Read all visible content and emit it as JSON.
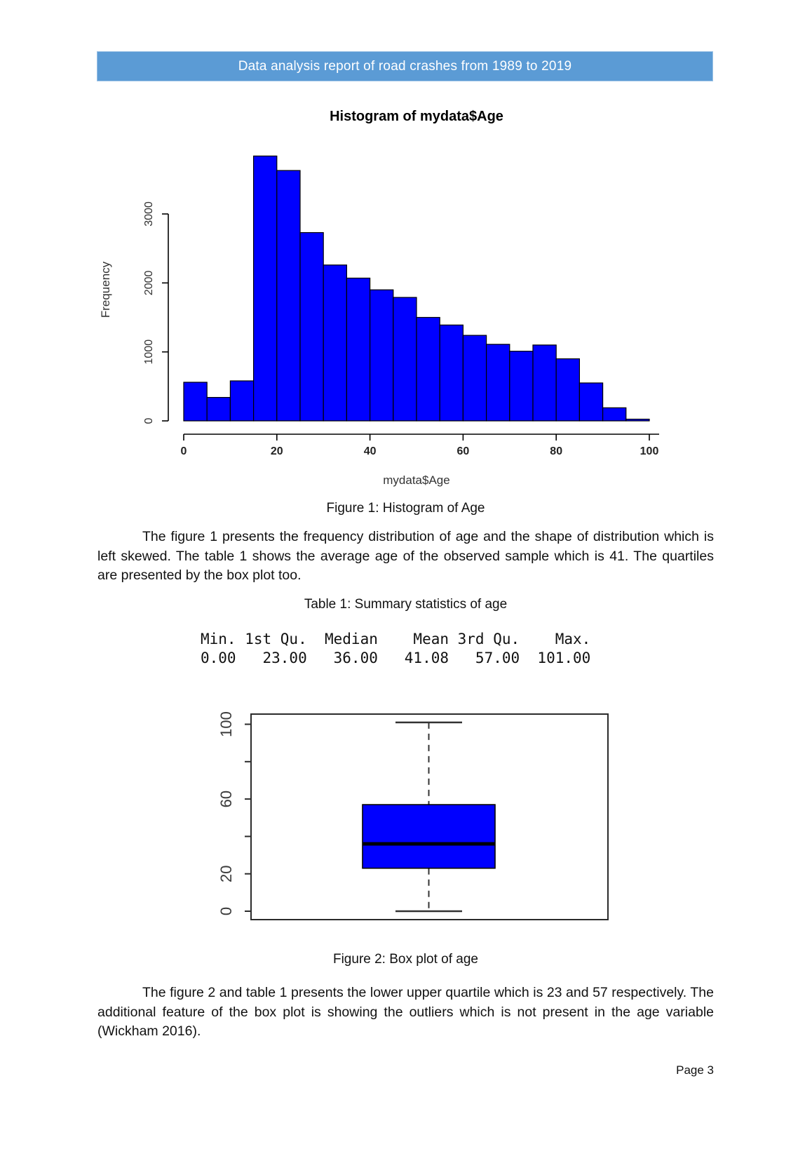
{
  "header": {
    "title": "Data analysis report of road crashes from 1989 to 2019",
    "bg_color": "#5b9bd5",
    "text_color": "#ffffff"
  },
  "figure1": {
    "caption": "Figure 1: Histogram of Age"
  },
  "paragraphs": {
    "p1": "The figure 1 presents the frequency distribution of age and the shape of distribution which is left skewed. The table 1 shows the average age of the observed sample which is 41. The quartiles are presented by the box plot too.",
    "p2": "The figure 2 and table 1 presents the lower upper quartile which is 23 and 57 respectively. The additional feature of the box plot is showing the outliers which is not present in the age variable (Wickham 2016)."
  },
  "table1": {
    "caption": "Table 1: Summary statistics of age",
    "header_line": "Min. 1st Qu.  Median    Mean 3rd Qu.    Max.",
    "values_line": "0.00   23.00   36.00   41.08   57.00  101.00",
    "stats": {
      "min": 0.0,
      "q1": 23.0,
      "median": 36.0,
      "mean": 41.08,
      "q3": 57.0,
      "max": 101.0
    }
  },
  "figure2": {
    "caption": "Figure 2: Box plot of age"
  },
  "footer": {
    "page_label": "Page 3"
  },
  "chart_data": [
    {
      "type": "bar",
      "variant": "histogram",
      "title": "Histogram of mydata$Age",
      "xlabel": "mydata$Age",
      "ylabel": "Frequency",
      "bin_start": 0,
      "bin_width": 5,
      "categories": [
        "0-5",
        "5-10",
        "10-15",
        "15-20",
        "20-25",
        "25-30",
        "30-35",
        "35-40",
        "40-45",
        "45-50",
        "50-55",
        "55-60",
        "60-65",
        "65-70",
        "70-75",
        "75-80",
        "80-85",
        "85-90",
        "90-95",
        "95-100"
      ],
      "values": [
        560,
        340,
        580,
        3840,
        3630,
        2730,
        2260,
        2070,
        1900,
        1790,
        1500,
        1390,
        1240,
        1110,
        1010,
        1100,
        900,
        550,
        190,
        25
      ],
      "bar_color": "#0000ff",
      "bar_border": "#000000",
      "xticks": [
        0,
        20,
        40,
        60,
        80,
        100
      ],
      "yticks": [
        0,
        1000,
        2000,
        3000
      ],
      "xlim": [
        0,
        100
      ],
      "ylim": [
        0,
        3840
      ],
      "grid": false,
      "legend": "none"
    },
    {
      "type": "boxplot",
      "title": "",
      "stats": {
        "whisker_low": 0,
        "q1": 23,
        "median": 36,
        "q3": 57,
        "whisker_high": 101
      },
      "yticks": [
        0,
        20,
        40,
        60,
        80,
        100
      ],
      "ytick_labels": [
        "0",
        "20",
        "",
        "60",
        "",
        "100"
      ],
      "ylim": [
        0,
        101
      ],
      "box_color": "#0000ff",
      "box_border": "#000000",
      "grid": false
    }
  ]
}
